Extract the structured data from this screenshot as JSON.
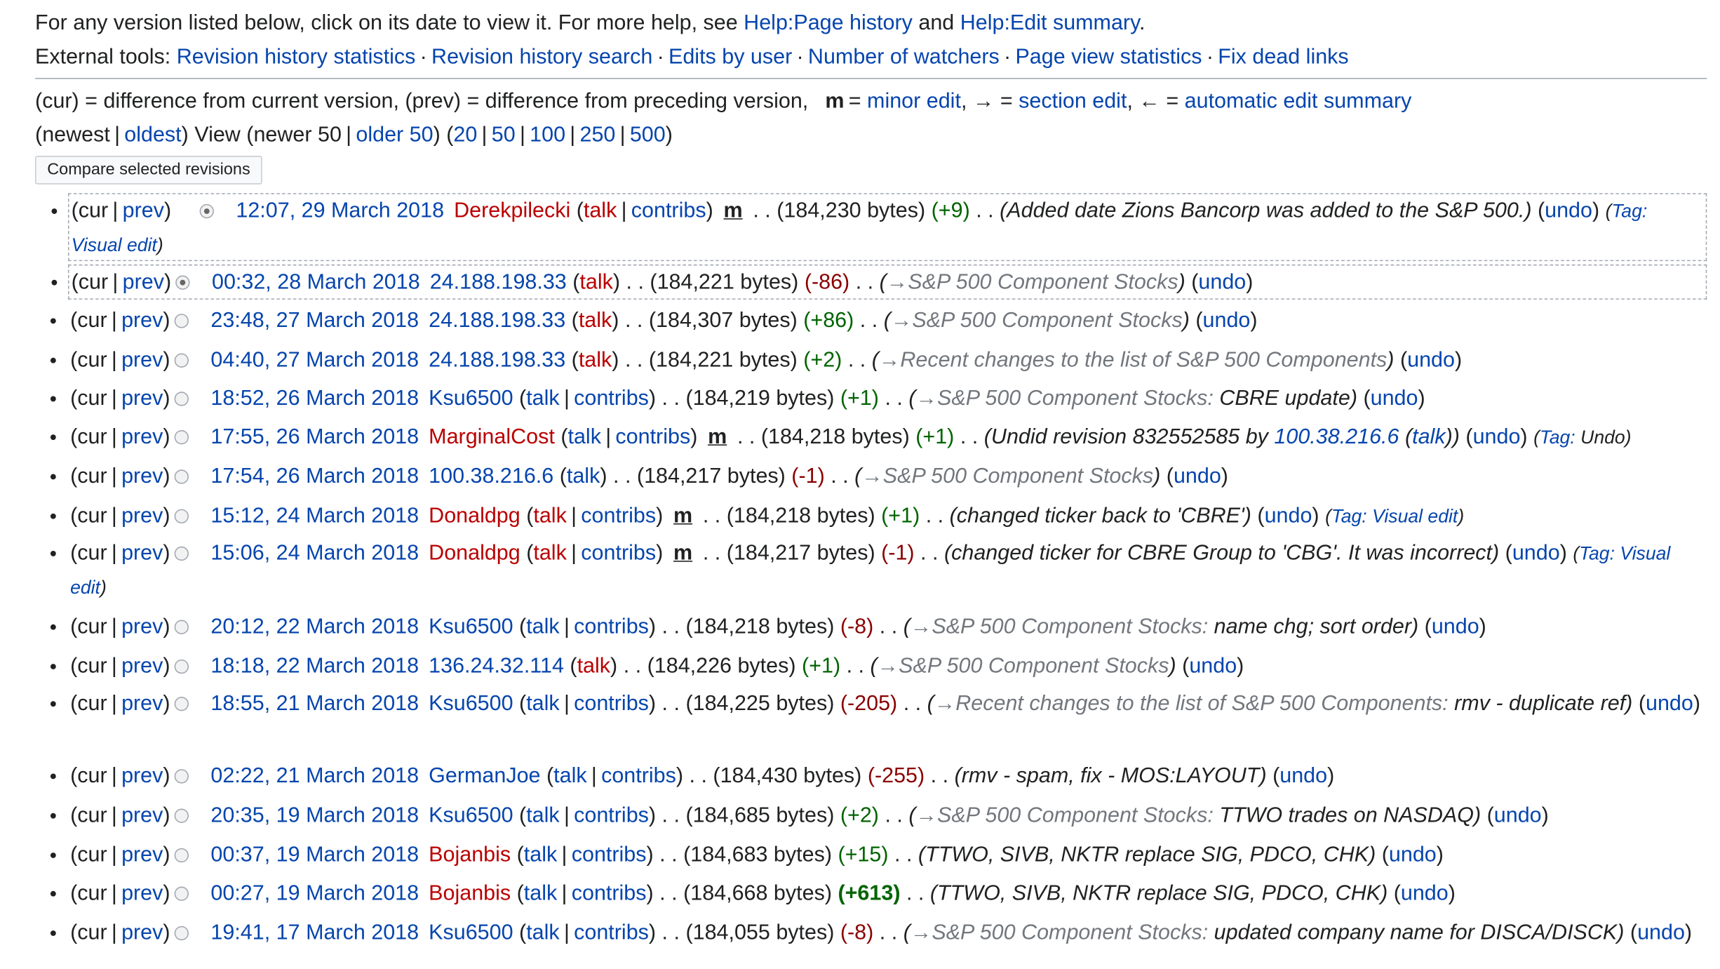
{
  "help": {
    "text": "For any version listed below, click on its date to view it. For more help, see",
    "link1": "Help:Page history",
    "and": "and",
    "link2": "Help:Edit summary"
  },
  "tools": {
    "label": "External tools:",
    "items": [
      "Revision history statistics",
      "Revision history search",
      "Edits by user",
      "Number of watchers",
      "Page view statistics",
      "Fix dead links"
    ]
  },
  "legend": {
    "text1": "(cur) = difference from current version, (prev) = difference from preceding version,",
    "m": "m",
    "eq": "=",
    "minor": "minor edit",
    "arrow1": "→",
    "section": "section edit",
    "arrow2": "←",
    "auto": "automatic edit summary"
  },
  "nav": {
    "newest": "(newest",
    "oldest": "oldest",
    "view": ") View (newer 50",
    "older": "older 50",
    "close": ") (",
    "limits": [
      "20",
      "50",
      "100",
      "250",
      "500"
    ],
    "end": ")"
  },
  "compare_label": "Compare selected revisions",
  "labels": {
    "cur": "cur",
    "prev": "prev",
    "talk": "talk",
    "contribs": "contribs",
    "undo": "undo",
    "tag": "Tag:",
    "minor_mark": "m"
  },
  "revisions": [
    {
      "date": "12:07, 29 March 2018",
      "user": "Derekpilecki",
      "redUser": true,
      "talkRed": true,
      "contribs": true,
      "minor": true,
      "bytes": "(184,230 bytes)",
      "diff": "(+9)",
      "sign": "pos",
      "section": "",
      "summary": "Added date Zions Bancorp was added to the S&P 500.",
      "tagValue": "Visual edit",
      "radio": "on1"
    },
    {
      "date": "00:32, 28 March 2018",
      "user": "24.188.198.33",
      "redUser": false,
      "talkRed": true,
      "contribs": false,
      "minor": false,
      "bytes": "(184,221 bytes)",
      "diff": "(-86)",
      "sign": "neg",
      "section": "S&P 500 Component Stocks",
      "summary": "",
      "tagValue": "",
      "radio": "on2"
    },
    {
      "date": "23:48, 27 March 2018",
      "user": "24.188.198.33",
      "redUser": false,
      "talkRed": true,
      "contribs": false,
      "minor": false,
      "bytes": "(184,307 bytes)",
      "diff": "(+86)",
      "sign": "pos",
      "section": "S&P 500 Component Stocks",
      "summary": "",
      "tagValue": "",
      "radio": "off"
    },
    {
      "date": "04:40, 27 March 2018",
      "user": "24.188.198.33",
      "redUser": false,
      "talkRed": true,
      "contribs": false,
      "minor": false,
      "bytes": "(184,221 bytes)",
      "diff": "(+2)",
      "sign": "pos",
      "section": "Recent changes to the list of S&P 500 Components",
      "summary": "",
      "tagValue": "",
      "radio": "off"
    },
    {
      "date": "18:52, 26 March 2018",
      "user": "Ksu6500",
      "redUser": false,
      "talkRed": false,
      "contribs": true,
      "minor": false,
      "bytes": "(184,219 bytes)",
      "diff": "(+1)",
      "sign": "pos",
      "section": "S&P 500 Component Stocks:",
      "summary": "CBRE update",
      "tagValue": "",
      "radio": "off"
    },
    {
      "date": "17:55, 26 March 2018",
      "user": "MarginalCost",
      "redUser": true,
      "talkRed": false,
      "contribs": true,
      "minor": true,
      "bytes": "(184,218 bytes)",
      "diff": "(+1)",
      "sign": "pos",
      "section": "",
      "summary": "Undid revision 832552585 by",
      "undidIp": "100.38.216.6",
      "tagValue": "Undo",
      "radio": "off"
    },
    {
      "date": "17:54, 26 March 2018",
      "user": "100.38.216.6",
      "redUser": false,
      "talkRed": false,
      "contribs": false,
      "minor": false,
      "bytes": "(184,217 bytes)",
      "diff": "(-1)",
      "sign": "neg",
      "section": "S&P 500 Component Stocks",
      "summary": "",
      "tagValue": "",
      "radio": "off"
    },
    {
      "date": "15:12, 24 March 2018",
      "user": "Donaldpg",
      "redUser": true,
      "talkRed": true,
      "contribs": true,
      "minor": true,
      "bytes": "(184,218 bytes)",
      "diff": "(+1)",
      "sign": "pos",
      "section": "",
      "summary": "changed ticker back to 'CBRE'",
      "tagValue": "Visual edit",
      "radio": "off"
    },
    {
      "date": "15:06, 24 March 2018",
      "user": "Donaldpg",
      "redUser": true,
      "talkRed": true,
      "contribs": true,
      "minor": true,
      "bytes": "(184,217 bytes)",
      "diff": "(-1)",
      "sign": "neg",
      "section": "",
      "summary": "changed ticker for CBRE Group to 'CBG'. It was incorrect",
      "tagValue": "Visual edit",
      "radio": "off"
    },
    {
      "date": "20:12, 22 March 2018",
      "user": "Ksu6500",
      "redUser": false,
      "talkRed": false,
      "contribs": true,
      "minor": false,
      "bytes": "(184,218 bytes)",
      "diff": "(-8)",
      "sign": "neg",
      "section": "S&P 500 Component Stocks:",
      "summary": "name chg; sort order",
      "tagValue": "",
      "radio": "off"
    },
    {
      "date": "18:18, 22 March 2018",
      "user": "136.24.32.114",
      "redUser": false,
      "talkRed": true,
      "contribs": false,
      "minor": false,
      "bytes": "(184,226 bytes)",
      "diff": "(+1)",
      "sign": "pos",
      "section": "S&P 500 Component Stocks",
      "summary": "",
      "tagValue": "",
      "radio": "off"
    },
    {
      "date": "18:55, 21 March 2018",
      "user": "Ksu6500",
      "redUser": false,
      "talkRed": false,
      "contribs": true,
      "minor": false,
      "bytes": "(184,225 bytes)",
      "diff": "(-205)",
      "sign": "neg",
      "section": "Recent changes to the list of S&P 500 Components:",
      "summary": "rmv - duplicate ref",
      "tagValue": "",
      "radio": "off"
    },
    {
      "date": "02:22, 21 March 2018",
      "user": "GermanJoe",
      "redUser": false,
      "talkRed": false,
      "contribs": true,
      "minor": false,
      "bytes": "(184,430 bytes)",
      "diff": "(-255)",
      "sign": "neg",
      "section": "",
      "summary": "rmv - spam, fix - MOS:LAYOUT",
      "tagValue": "",
      "radio": "off"
    },
    {
      "date": "20:35, 19 March 2018",
      "user": "Ksu6500",
      "redUser": false,
      "talkRed": false,
      "contribs": true,
      "minor": false,
      "bytes": "(184,685 bytes)",
      "diff": "(+2)",
      "sign": "pos",
      "section": "S&P 500 Component Stocks:",
      "summary": "TTWO trades on NASDAQ",
      "tagValue": "",
      "radio": "off"
    },
    {
      "date": "00:37, 19 March 2018",
      "user": "Bojanbis",
      "redUser": true,
      "talkRed": false,
      "contribs": true,
      "minor": false,
      "bytes": "(184,683 bytes)",
      "diff": "(+15)",
      "sign": "pos",
      "section": "",
      "summary": "TTWO, SIVB, NKTR replace SIG, PDCO, CHK",
      "tagValue": "",
      "radio": "off"
    },
    {
      "date": "00:27, 19 March 2018",
      "user": "Bojanbis",
      "redUser": true,
      "talkRed": false,
      "contribs": true,
      "minor": false,
      "bytes": "(184,668 bytes)",
      "diff": "(+613)",
      "sign": "posbig",
      "section": "",
      "summary": "TTWO, SIVB, NKTR replace SIG, PDCO, CHK",
      "tagValue": "",
      "radio": "off"
    },
    {
      "date": "19:41, 17 March 2018",
      "user": "Ksu6500",
      "redUser": false,
      "talkRed": false,
      "contribs": true,
      "minor": false,
      "bytes": "(184,055 bytes)",
      "diff": "(-8)",
      "sign": "neg",
      "section": "S&P 500 Component Stocks:",
      "summary": "updated company name for DISCA/DISCK",
      "tagValue": "",
      "radio": "off"
    }
  ]
}
